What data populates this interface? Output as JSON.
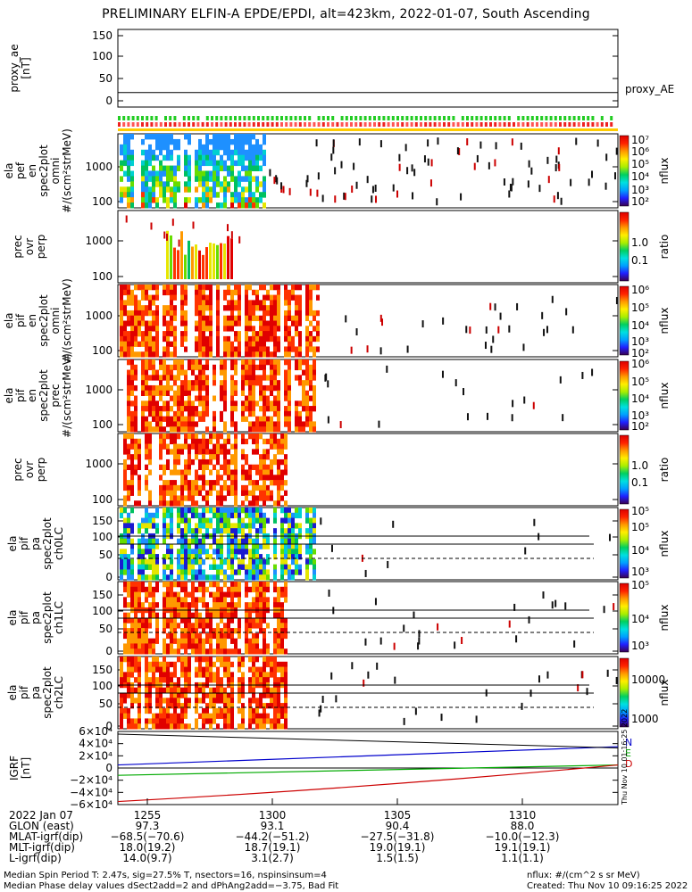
{
  "title": "PRELIMINARY ELFIN-A EPDE/EPDI, alt=423km, 2022-01-07, South Ascending",
  "panels": [
    {
      "ylabel": [
        "proxy_ae",
        "[nT]"
      ],
      "ticks": [
        "150",
        "100",
        "50",
        "0"
      ],
      "trace_label": "proxy_AE"
    },
    {
      "ylabel": [
        "ela",
        "pef",
        "en",
        "spec2plot",
        "omni",
        "#/(scm²strMeV)"
      ],
      "ticks": [
        "1000",
        "100"
      ],
      "colorbar": {
        "ticks": [
          "10⁷",
          "10⁶",
          "10⁵",
          "10⁴",
          "10³",
          "10²"
        ],
        "label": "nflux"
      }
    },
    {
      "ylabel": [
        "prec",
        "ovr",
        "perp"
      ],
      "ticks": [
        "1000",
        "100"
      ],
      "colorbar": {
        "ticks": [
          "1.0",
          "0.1"
        ],
        "label": "ratio"
      }
    },
    {
      "ylabel": [
        "ela",
        "pif",
        "en",
        "spec2plot",
        "omni",
        "#/(scm²strMeV)"
      ],
      "ticks": [
        "1000",
        "100"
      ],
      "colorbar": {
        "ticks": [
          "10⁶",
          "10⁵",
          "10⁴",
          "10³",
          "10²"
        ],
        "label": "nflux"
      }
    },
    {
      "ylabel": [
        "ela",
        "pif",
        "en",
        "spec2plot",
        "prec",
        "#/(scm²strMeV)"
      ],
      "ticks": [
        "1000",
        "100"
      ],
      "colorbar": {
        "ticks": [
          "10⁶",
          "10⁵",
          "10⁴",
          "10³",
          "10²"
        ],
        "label": "nflux"
      }
    },
    {
      "ylabel": [
        "prec",
        "ovr",
        "perp"
      ],
      "ticks": [
        "1000",
        "100"
      ],
      "colorbar": {
        "ticks": [
          "1.0",
          "0.1"
        ],
        "label": "ratio"
      }
    },
    {
      "ylabel": [
        "ela",
        "pif",
        "pa",
        "spec2plot",
        "ch0LC"
      ],
      "ticks": [
        "150",
        "100",
        "50",
        "0"
      ],
      "colorbar": {
        "ticks": [
          "10⁵",
          "10⁵",
          "10⁴",
          "10³"
        ],
        "label": "nflux"
      }
    },
    {
      "ylabel": [
        "ela",
        "pif",
        "pa",
        "spec2plot",
        "ch1LC"
      ],
      "ticks": [
        "150",
        "100",
        "50",
        "0"
      ],
      "colorbar": {
        "ticks": [
          "10⁵",
          "10⁴",
          "10³"
        ],
        "label": "nflux"
      }
    },
    {
      "ylabel": [
        "ela",
        "pif",
        "pa",
        "spec2plot",
        "ch2LC"
      ],
      "ticks": [
        "150",
        "100",
        "50",
        "0"
      ],
      "colorbar": {
        "ticks": [
          "10000",
          "1000"
        ],
        "label": "nflux"
      }
    },
    {
      "ylabel": [
        "IGRF",
        "[nT]"
      ],
      "ticks": [
        "6×10⁴",
        "4×10⁴",
        "2×10⁴",
        "0",
        "−2×10⁴",
        "−4×10⁴",
        "−6×10⁴"
      ],
      "legend": [
        "N",
        "E",
        "D"
      ]
    }
  ],
  "timestamp_vertical": "Thu Nov 10 01:16:25 2022",
  "xaxis_rows": [
    [
      "2022 Jan 07",
      "1255",
      "1300",
      "1305",
      "1310"
    ],
    [
      "GLON (east)",
      "97.3",
      "93.1",
      "90.4",
      "88.0"
    ],
    [
      "MLAT-igrf(dip)",
      "−68.5(−70.6)",
      "−44.2(−51.2)",
      "−27.5(−31.8)",
      "−10.0(−12.3)"
    ],
    [
      "MLT-igrf(dip)",
      "18.0(19.2)",
      "18.7(19.1)",
      "19.0(19.1)",
      "19.1(19.1)"
    ],
    [
      "L-igrf(dip)",
      "14.0(9.7)",
      "3.1(2.7)",
      "1.5(1.5)",
      "1.1(1.1)"
    ]
  ],
  "footer": {
    "line1": "Median Spin Period T: 2.47s, sig=27.5% T, nsectors=16, nspinsinsum=4",
    "line2": "Median Phase delay values dSect2add=2 and dPhAng2add=−3.75, Bad Fit",
    "right1": "nflux: #/(cm^2 s sr MeV)",
    "right2": "Created: Thu Nov 10 09:16:25 2022"
  },
  "colors": {
    "N": "#0000cc",
    "E": "#00aa00",
    "D": "#cc0000",
    "mark_green": "#22cc22",
    "mark_red": "#ee2222",
    "mark_yellow": "#ffcc00"
  },
  "chart_data": [
    {
      "type": "line",
      "name": "proxy_AE",
      "ylim": [
        0,
        150
      ],
      "x": [
        "1251",
        "1315"
      ],
      "values": [
        22,
        22
      ]
    },
    {
      "type": "line",
      "name": "IGRF",
      "ylim": [
        -60000,
        60000
      ],
      "series": [
        {
          "name": "N",
          "values": [
            5000,
            35000
          ]
        },
        {
          "name": "E",
          "values": [
            -12000,
            5000
          ]
        },
        {
          "name": "D",
          "values": [
            -55000,
            5000
          ]
        }
      ]
    }
  ]
}
